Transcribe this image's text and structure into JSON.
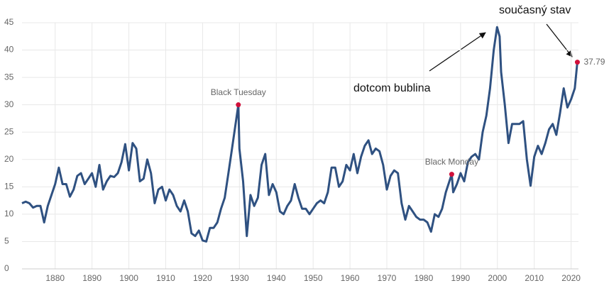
{
  "chart_data": {
    "type": "line",
    "x": [
      1871,
      1872,
      1873,
      1874,
      1875,
      1876,
      1877,
      1878,
      1879,
      1880,
      1881,
      1882,
      1883,
      1884,
      1885,
      1886,
      1887,
      1888,
      1889,
      1890,
      1891,
      1892,
      1893,
      1894,
      1895,
      1896,
      1897,
      1898,
      1899,
      1900,
      1901,
      1902,
      1903,
      1904,
      1905,
      1906,
      1907,
      1908,
      1909,
      1910,
      1911,
      1912,
      1913,
      1914,
      1915,
      1916,
      1917,
      1918,
      1919,
      1920,
      1921,
      1922,
      1923,
      1924,
      1925,
      1926,
      1927,
      1928,
      1929.7,
      1930,
      1931,
      1932,
      1933,
      1934,
      1935,
      1936,
      1937,
      1938,
      1939,
      1940,
      1941,
      1942,
      1943,
      1944,
      1945,
      1946,
      1947,
      1948,
      1949,
      1950,
      1951,
      1952,
      1953,
      1954,
      1955,
      1956,
      1957,
      1958,
      1959,
      1960,
      1961,
      1962,
      1963,
      1964,
      1965,
      1966,
      1967,
      1968,
      1969,
      1970,
      1971,
      1972,
      1973,
      1974,
      1975,
      1976,
      1977,
      1978,
      1979,
      1980,
      1981,
      1982,
      1983,
      1984,
      1985,
      1986,
      1987.6,
      1988,
      1989,
      1990,
      1991,
      1992,
      1993,
      1994,
      1995,
      1996,
      1997,
      1998,
      1999,
      1999.9,
      2000.6,
      2001,
      2002,
      2003,
      2004,
      2005,
      2006,
      2007,
      2008,
      2009,
      2010,
      2011,
      2012,
      2013,
      2014,
      2015,
      2016,
      2017,
      2018,
      2019,
      2020,
      2021,
      2021.7
    ],
    "series": [
      {
        "color": "#2f5181",
        "values": [
          12,
          12.3,
          12,
          11.2,
          11.5,
          11.5,
          8.5,
          11.5,
          13.5,
          15.5,
          18.5,
          15.5,
          15.5,
          13.2,
          14.5,
          17,
          17.5,
          15.5,
          16.5,
          17.5,
          15,
          19,
          14.5,
          16,
          17,
          16.8,
          17.5,
          19.5,
          22.8,
          18,
          23,
          22,
          16,
          16.5,
          20,
          17.5,
          12,
          14.5,
          15,
          12.5,
          14.5,
          13.5,
          11.5,
          10.5,
          12.5,
          10.5,
          6.5,
          6,
          7,
          5.2,
          5,
          7.5,
          7.5,
          8.5,
          11,
          13,
          17.5,
          22,
          30,
          22,
          16,
          6,
          13.5,
          11.5,
          13,
          19,
          21,
          13.5,
          15.5,
          14,
          10.5,
          10,
          11.5,
          12.5,
          15.5,
          13,
          11,
          11,
          10,
          11,
          12,
          12.5,
          12,
          14,
          18.5,
          18.5,
          15,
          16,
          19,
          18,
          21,
          17.5,
          20.5,
          22.5,
          23.5,
          21,
          22,
          21.5,
          19,
          14.5,
          17,
          18,
          17.5,
          12,
          9,
          11.5,
          10.5,
          9.5,
          9,
          9,
          8.5,
          6.8,
          10,
          9.5,
          11,
          14,
          17.3,
          14,
          15.5,
          17.5,
          16,
          19.5,
          20.5,
          21,
          20,
          25,
          28,
          33,
          40,
          44.2,
          42.5,
          36,
          30,
          23,
          26.5,
          26.5,
          26.5,
          27,
          20,
          15.2,
          20.5,
          22.5,
          21,
          23,
          25.5,
          26.5,
          24.5,
          28.5,
          33,
          29.5,
          31,
          33,
          37.79
        ]
      }
    ],
    "highlights": [
      {
        "label": "Black Tuesday",
        "x": 1929.7,
        "y": 30
      },
      {
        "label": "Black Monday",
        "x": 1987.6,
        "y": 17.3
      },
      {
        "x": 2021.7,
        "y": 37.79
      }
    ],
    "highlight_color": "#d0103a",
    "annotations": [
      "dotcom bublina",
      "současný stav"
    ],
    "xlim": [
      1871,
      2022
    ],
    "xticks": [
      1880,
      1890,
      1900,
      1910,
      1920,
      1930,
      1940,
      1950,
      1960,
      1970,
      1980,
      1990,
      2000,
      2010,
      2020
    ],
    "ylim": [
      0,
      45
    ],
    "yticks": [
      0,
      5,
      10,
      15,
      20,
      25,
      30,
      35,
      40,
      45
    ],
    "grid": true
  }
}
